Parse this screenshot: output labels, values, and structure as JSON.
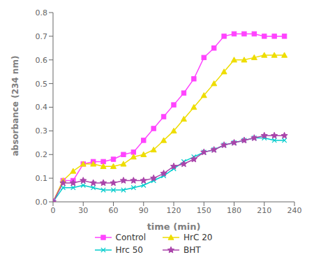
{
  "chart_data": {
    "type": "line",
    "xlabel": "time (min)",
    "ylabel": "absorbance (234 nm)",
    "xlim": [
      0,
      240
    ],
    "ylim": [
      0,
      0.8
    ],
    "xticks": [
      0,
      30,
      60,
      90,
      120,
      150,
      180,
      210,
      240
    ],
    "yticks": [
      {
        "value": 0,
        "label": "0.0"
      },
      0.1,
      0.2,
      0.3,
      0.4,
      0.5,
      0.6,
      0.7,
      0.8
    ],
    "grid": false,
    "legend": "bottom",
    "x": [
      0,
      10,
      20,
      30,
      40,
      50,
      60,
      70,
      80,
      90,
      100,
      110,
      120,
      130,
      140,
      150,
      160,
      170,
      180,
      190,
      200,
      210,
      220,
      230
    ],
    "series": [
      {
        "name": "Control",
        "color": "#FF44FF",
        "marker": "square",
        "values": [
          0,
          0.09,
          0.09,
          0.16,
          0.17,
          0.17,
          0.18,
          0.2,
          0.21,
          0.26,
          0.31,
          0.36,
          0.41,
          0.46,
          0.52,
          0.61,
          0.65,
          0.7,
          0.71,
          0.71,
          0.71,
          0.7,
          0.7,
          0.7
        ]
      },
      {
        "name": "HrC 20",
        "color": "#EEDD00",
        "marker": "triangle",
        "values": [
          0,
          0.09,
          0.13,
          0.16,
          0.16,
          0.15,
          0.15,
          0.16,
          0.19,
          0.2,
          0.22,
          0.26,
          0.3,
          0.35,
          0.4,
          0.45,
          0.5,
          0.55,
          0.6,
          0.6,
          0.61,
          0.62,
          0.62,
          0.62
        ]
      },
      {
        "name": "Hrc 50",
        "color": "#00CCCC",
        "marker": "x",
        "values": [
          0,
          0.06,
          0.06,
          0.07,
          0.06,
          0.05,
          0.05,
          0.05,
          0.06,
          0.07,
          0.09,
          0.11,
          0.14,
          0.17,
          0.19,
          0.21,
          0.22,
          0.24,
          0.25,
          0.26,
          0.27,
          0.27,
          0.26,
          0.26
        ]
      },
      {
        "name": "BHT",
        "color": "#AA44AA",
        "marker": "star",
        "values": [
          0,
          0.08,
          0.08,
          0.09,
          0.08,
          0.08,
          0.08,
          0.09,
          0.09,
          0.09,
          0.1,
          0.12,
          0.15,
          0.16,
          0.18,
          0.21,
          0.22,
          0.24,
          0.25,
          0.26,
          0.27,
          0.28,
          0.28,
          0.28
        ]
      }
    ]
  }
}
